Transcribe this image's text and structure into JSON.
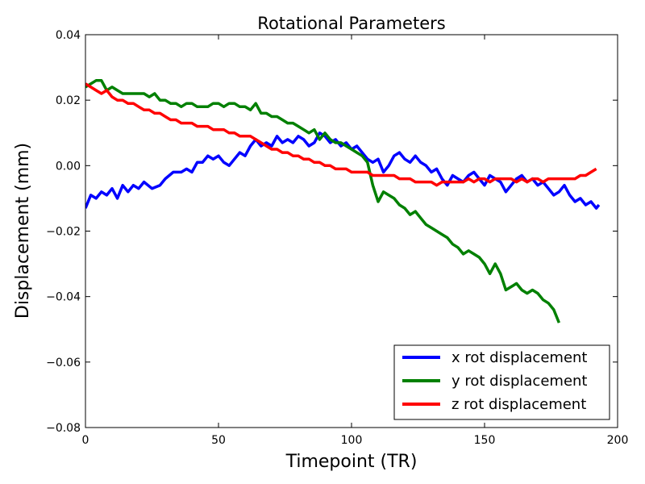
{
  "chart_data": {
    "type": "line",
    "title": "Rotational Parameters",
    "xlabel": "Timepoint (TR)",
    "ylabel": "Displacement (mm)",
    "xlim": [
      0,
      200
    ],
    "ylim": [
      -0.08,
      0.04
    ],
    "xticks": [
      "0",
      "50",
      "100",
      "150",
      "200"
    ],
    "yticks": [
      "0.04",
      "0.02",
      "0.00",
      "−0.02",
      "−0.04",
      "−0.06",
      "−0.08"
    ],
    "grid": false,
    "legend_position": "lower-right",
    "series": [
      {
        "name": "x rot displacement",
        "color": "#0000ff",
        "points": [
          [
            0,
            -0.013
          ],
          [
            2,
            -0.009
          ],
          [
            4,
            -0.01
          ],
          [
            6,
            -0.008
          ],
          [
            8,
            -0.009
          ],
          [
            10,
            -0.007
          ],
          [
            12,
            -0.01
          ],
          [
            14,
            -0.006
          ],
          [
            16,
            -0.008
          ],
          [
            18,
            -0.006
          ],
          [
            20,
            -0.007
          ],
          [
            22,
            -0.005
          ],
          [
            25,
            -0.007
          ],
          [
            28,
            -0.006
          ],
          [
            30,
            -0.004
          ],
          [
            33,
            -0.002
          ],
          [
            36,
            -0.002
          ],
          [
            38,
            -0.001
          ],
          [
            40,
            -0.002
          ],
          [
            42,
            0.001
          ],
          [
            44,
            0.001
          ],
          [
            46,
            0.003
          ],
          [
            48,
            0.002
          ],
          [
            50,
            0.003
          ],
          [
            52,
            0.001
          ],
          [
            54,
            0.0
          ],
          [
            56,
            0.002
          ],
          [
            58,
            0.004
          ],
          [
            60,
            0.003
          ],
          [
            62,
            0.006
          ],
          [
            64,
            0.008
          ],
          [
            66,
            0.006
          ],
          [
            68,
            0.007
          ],
          [
            70,
            0.006
          ],
          [
            72,
            0.009
          ],
          [
            74,
            0.007
          ],
          [
            76,
            0.008
          ],
          [
            78,
            0.007
          ],
          [
            80,
            0.009
          ],
          [
            82,
            0.008
          ],
          [
            84,
            0.006
          ],
          [
            86,
            0.007
          ],
          [
            88,
            0.01
          ],
          [
            90,
            0.009
          ],
          [
            92,
            0.007
          ],
          [
            94,
            0.008
          ],
          [
            96,
            0.006
          ],
          [
            98,
            0.007
          ],
          [
            100,
            0.005
          ],
          [
            102,
            0.006
          ],
          [
            104,
            0.004
          ],
          [
            106,
            0.002
          ],
          [
            108,
            0.001
          ],
          [
            110,
            0.002
          ],
          [
            112,
            -0.002
          ],
          [
            114,
            0.0
          ],
          [
            116,
            0.003
          ],
          [
            118,
            0.004
          ],
          [
            120,
            0.002
          ],
          [
            122,
            0.001
          ],
          [
            124,
            0.003
          ],
          [
            126,
            0.001
          ],
          [
            128,
            0.0
          ],
          [
            130,
            -0.002
          ],
          [
            132,
            -0.001
          ],
          [
            134,
            -0.004
          ],
          [
            136,
            -0.006
          ],
          [
            138,
            -0.003
          ],
          [
            140,
            -0.004
          ],
          [
            142,
            -0.005
          ],
          [
            144,
            -0.003
          ],
          [
            146,
            -0.002
          ],
          [
            148,
            -0.004
          ],
          [
            150,
            -0.006
          ],
          [
            152,
            -0.003
          ],
          [
            154,
            -0.004
          ],
          [
            156,
            -0.005
          ],
          [
            158,
            -0.008
          ],
          [
            160,
            -0.006
          ],
          [
            162,
            -0.004
          ],
          [
            164,
            -0.003
          ],
          [
            166,
            -0.005
          ],
          [
            168,
            -0.004
          ],
          [
            170,
            -0.006
          ],
          [
            172,
            -0.005
          ],
          [
            174,
            -0.007
          ],
          [
            176,
            -0.009
          ],
          [
            178,
            -0.008
          ],
          [
            180,
            -0.006
          ],
          [
            182,
            -0.009
          ],
          [
            184,
            -0.011
          ],
          [
            186,
            -0.01
          ],
          [
            188,
            -0.012
          ],
          [
            190,
            -0.011
          ],
          [
            192,
            -0.013
          ],
          [
            193,
            -0.012
          ]
        ]
      },
      {
        "name": "y rot displacement",
        "color": "#008000",
        "points": [
          [
            0,
            0.024
          ],
          [
            2,
            0.025
          ],
          [
            4,
            0.026
          ],
          [
            6,
            0.026
          ],
          [
            8,
            0.023
          ],
          [
            10,
            0.024
          ],
          [
            12,
            0.023
          ],
          [
            14,
            0.022
          ],
          [
            16,
            0.022
          ],
          [
            18,
            0.022
          ],
          [
            20,
            0.022
          ],
          [
            22,
            0.022
          ],
          [
            24,
            0.021
          ],
          [
            26,
            0.022
          ],
          [
            28,
            0.02
          ],
          [
            30,
            0.02
          ],
          [
            32,
            0.019
          ],
          [
            34,
            0.019
          ],
          [
            36,
            0.018
          ],
          [
            38,
            0.019
          ],
          [
            40,
            0.019
          ],
          [
            42,
            0.018
          ],
          [
            44,
            0.018
          ],
          [
            46,
            0.018
          ],
          [
            48,
            0.019
          ],
          [
            50,
            0.019
          ],
          [
            52,
            0.018
          ],
          [
            54,
            0.019
          ],
          [
            56,
            0.019
          ],
          [
            58,
            0.018
          ],
          [
            60,
            0.018
          ],
          [
            62,
            0.017
          ],
          [
            64,
            0.019
          ],
          [
            66,
            0.016
          ],
          [
            68,
            0.016
          ],
          [
            70,
            0.015
          ],
          [
            72,
            0.015
          ],
          [
            74,
            0.014
          ],
          [
            76,
            0.013
          ],
          [
            78,
            0.013
          ],
          [
            80,
            0.012
          ],
          [
            82,
            0.011
          ],
          [
            84,
            0.01
          ],
          [
            86,
            0.011
          ],
          [
            88,
            0.008
          ],
          [
            90,
            0.01
          ],
          [
            92,
            0.008
          ],
          [
            94,
            0.007
          ],
          [
            96,
            0.007
          ],
          [
            98,
            0.006
          ],
          [
            100,
            0.005
          ],
          [
            102,
            0.004
          ],
          [
            104,
            0.003
          ],
          [
            106,
            0.001
          ],
          [
            108,
            -0.006
          ],
          [
            110,
            -0.011
          ],
          [
            112,
            -0.008
          ],
          [
            114,
            -0.009
          ],
          [
            116,
            -0.01
          ],
          [
            118,
            -0.012
          ],
          [
            120,
            -0.013
          ],
          [
            122,
            -0.015
          ],
          [
            124,
            -0.014
          ],
          [
            126,
            -0.016
          ],
          [
            128,
            -0.018
          ],
          [
            130,
            -0.019
          ],
          [
            132,
            -0.02
          ],
          [
            134,
            -0.021
          ],
          [
            136,
            -0.022
          ],
          [
            138,
            -0.024
          ],
          [
            140,
            -0.025
          ],
          [
            142,
            -0.027
          ],
          [
            144,
            -0.026
          ],
          [
            146,
            -0.027
          ],
          [
            148,
            -0.028
          ],
          [
            150,
            -0.03
          ],
          [
            152,
            -0.033
          ],
          [
            154,
            -0.03
          ],
          [
            156,
            -0.033
          ],
          [
            158,
            -0.038
          ],
          [
            160,
            -0.037
          ],
          [
            162,
            -0.036
          ],
          [
            164,
            -0.038
          ],
          [
            166,
            -0.039
          ],
          [
            168,
            -0.038
          ],
          [
            170,
            -0.039
          ],
          [
            172,
            -0.041
          ],
          [
            174,
            -0.042
          ],
          [
            176,
            -0.044
          ],
          [
            178,
            -0.048
          ]
        ]
      },
      {
        "name": "z rot displacement",
        "color": "#ff0000",
        "points": [
          [
            0,
            0.025
          ],
          [
            2,
            0.024
          ],
          [
            4,
            0.023
          ],
          [
            6,
            0.022
          ],
          [
            8,
            0.023
          ],
          [
            10,
            0.021
          ],
          [
            12,
            0.02
          ],
          [
            14,
            0.02
          ],
          [
            16,
            0.019
          ],
          [
            18,
            0.019
          ],
          [
            20,
            0.018
          ],
          [
            22,
            0.017
          ],
          [
            24,
            0.017
          ],
          [
            26,
            0.016
          ],
          [
            28,
            0.016
          ],
          [
            30,
            0.015
          ],
          [
            32,
            0.014
          ],
          [
            34,
            0.014
          ],
          [
            36,
            0.013
          ],
          [
            38,
            0.013
          ],
          [
            40,
            0.013
          ],
          [
            42,
            0.012
          ],
          [
            44,
            0.012
          ],
          [
            46,
            0.012
          ],
          [
            48,
            0.011
          ],
          [
            50,
            0.011
          ],
          [
            52,
            0.011
          ],
          [
            54,
            0.01
          ],
          [
            56,
            0.01
          ],
          [
            58,
            0.009
          ],
          [
            60,
            0.009
          ],
          [
            62,
            0.009
          ],
          [
            64,
            0.008
          ],
          [
            66,
            0.007
          ],
          [
            68,
            0.006
          ],
          [
            70,
            0.005
          ],
          [
            72,
            0.005
          ],
          [
            74,
            0.004
          ],
          [
            76,
            0.004
          ],
          [
            78,
            0.003
          ],
          [
            80,
            0.003
          ],
          [
            82,
            0.002
          ],
          [
            84,
            0.002
          ],
          [
            86,
            0.001
          ],
          [
            88,
            0.001
          ],
          [
            90,
            0.0
          ],
          [
            92,
            0.0
          ],
          [
            94,
            -0.001
          ],
          [
            96,
            -0.001
          ],
          [
            98,
            -0.001
          ],
          [
            100,
            -0.002
          ],
          [
            102,
            -0.002
          ],
          [
            104,
            -0.002
          ],
          [
            106,
            -0.002
          ],
          [
            108,
            -0.003
          ],
          [
            110,
            -0.003
          ],
          [
            112,
            -0.003
          ],
          [
            114,
            -0.003
          ],
          [
            116,
            -0.003
          ],
          [
            118,
            -0.004
          ],
          [
            120,
            -0.004
          ],
          [
            122,
            -0.004
          ],
          [
            124,
            -0.005
          ],
          [
            126,
            -0.005
          ],
          [
            128,
            -0.005
          ],
          [
            130,
            -0.005
          ],
          [
            132,
            -0.006
          ],
          [
            134,
            -0.005
          ],
          [
            136,
            -0.005
          ],
          [
            138,
            -0.005
          ],
          [
            140,
            -0.005
          ],
          [
            142,
            -0.005
          ],
          [
            144,
            -0.004
          ],
          [
            146,
            -0.005
          ],
          [
            148,
            -0.004
          ],
          [
            150,
            -0.004
          ],
          [
            152,
            -0.005
          ],
          [
            154,
            -0.004
          ],
          [
            156,
            -0.004
          ],
          [
            158,
            -0.004
          ],
          [
            160,
            -0.004
          ],
          [
            162,
            -0.005
          ],
          [
            164,
            -0.004
          ],
          [
            166,
            -0.005
          ],
          [
            168,
            -0.004
          ],
          [
            170,
            -0.004
          ],
          [
            172,
            -0.005
          ],
          [
            174,
            -0.004
          ],
          [
            176,
            -0.004
          ],
          [
            178,
            -0.004
          ],
          [
            180,
            -0.004
          ],
          [
            182,
            -0.004
          ],
          [
            184,
            -0.004
          ],
          [
            186,
            -0.003
          ],
          [
            188,
            -0.003
          ],
          [
            190,
            -0.002
          ],
          [
            192,
            -0.001
          ]
        ]
      }
    ]
  }
}
